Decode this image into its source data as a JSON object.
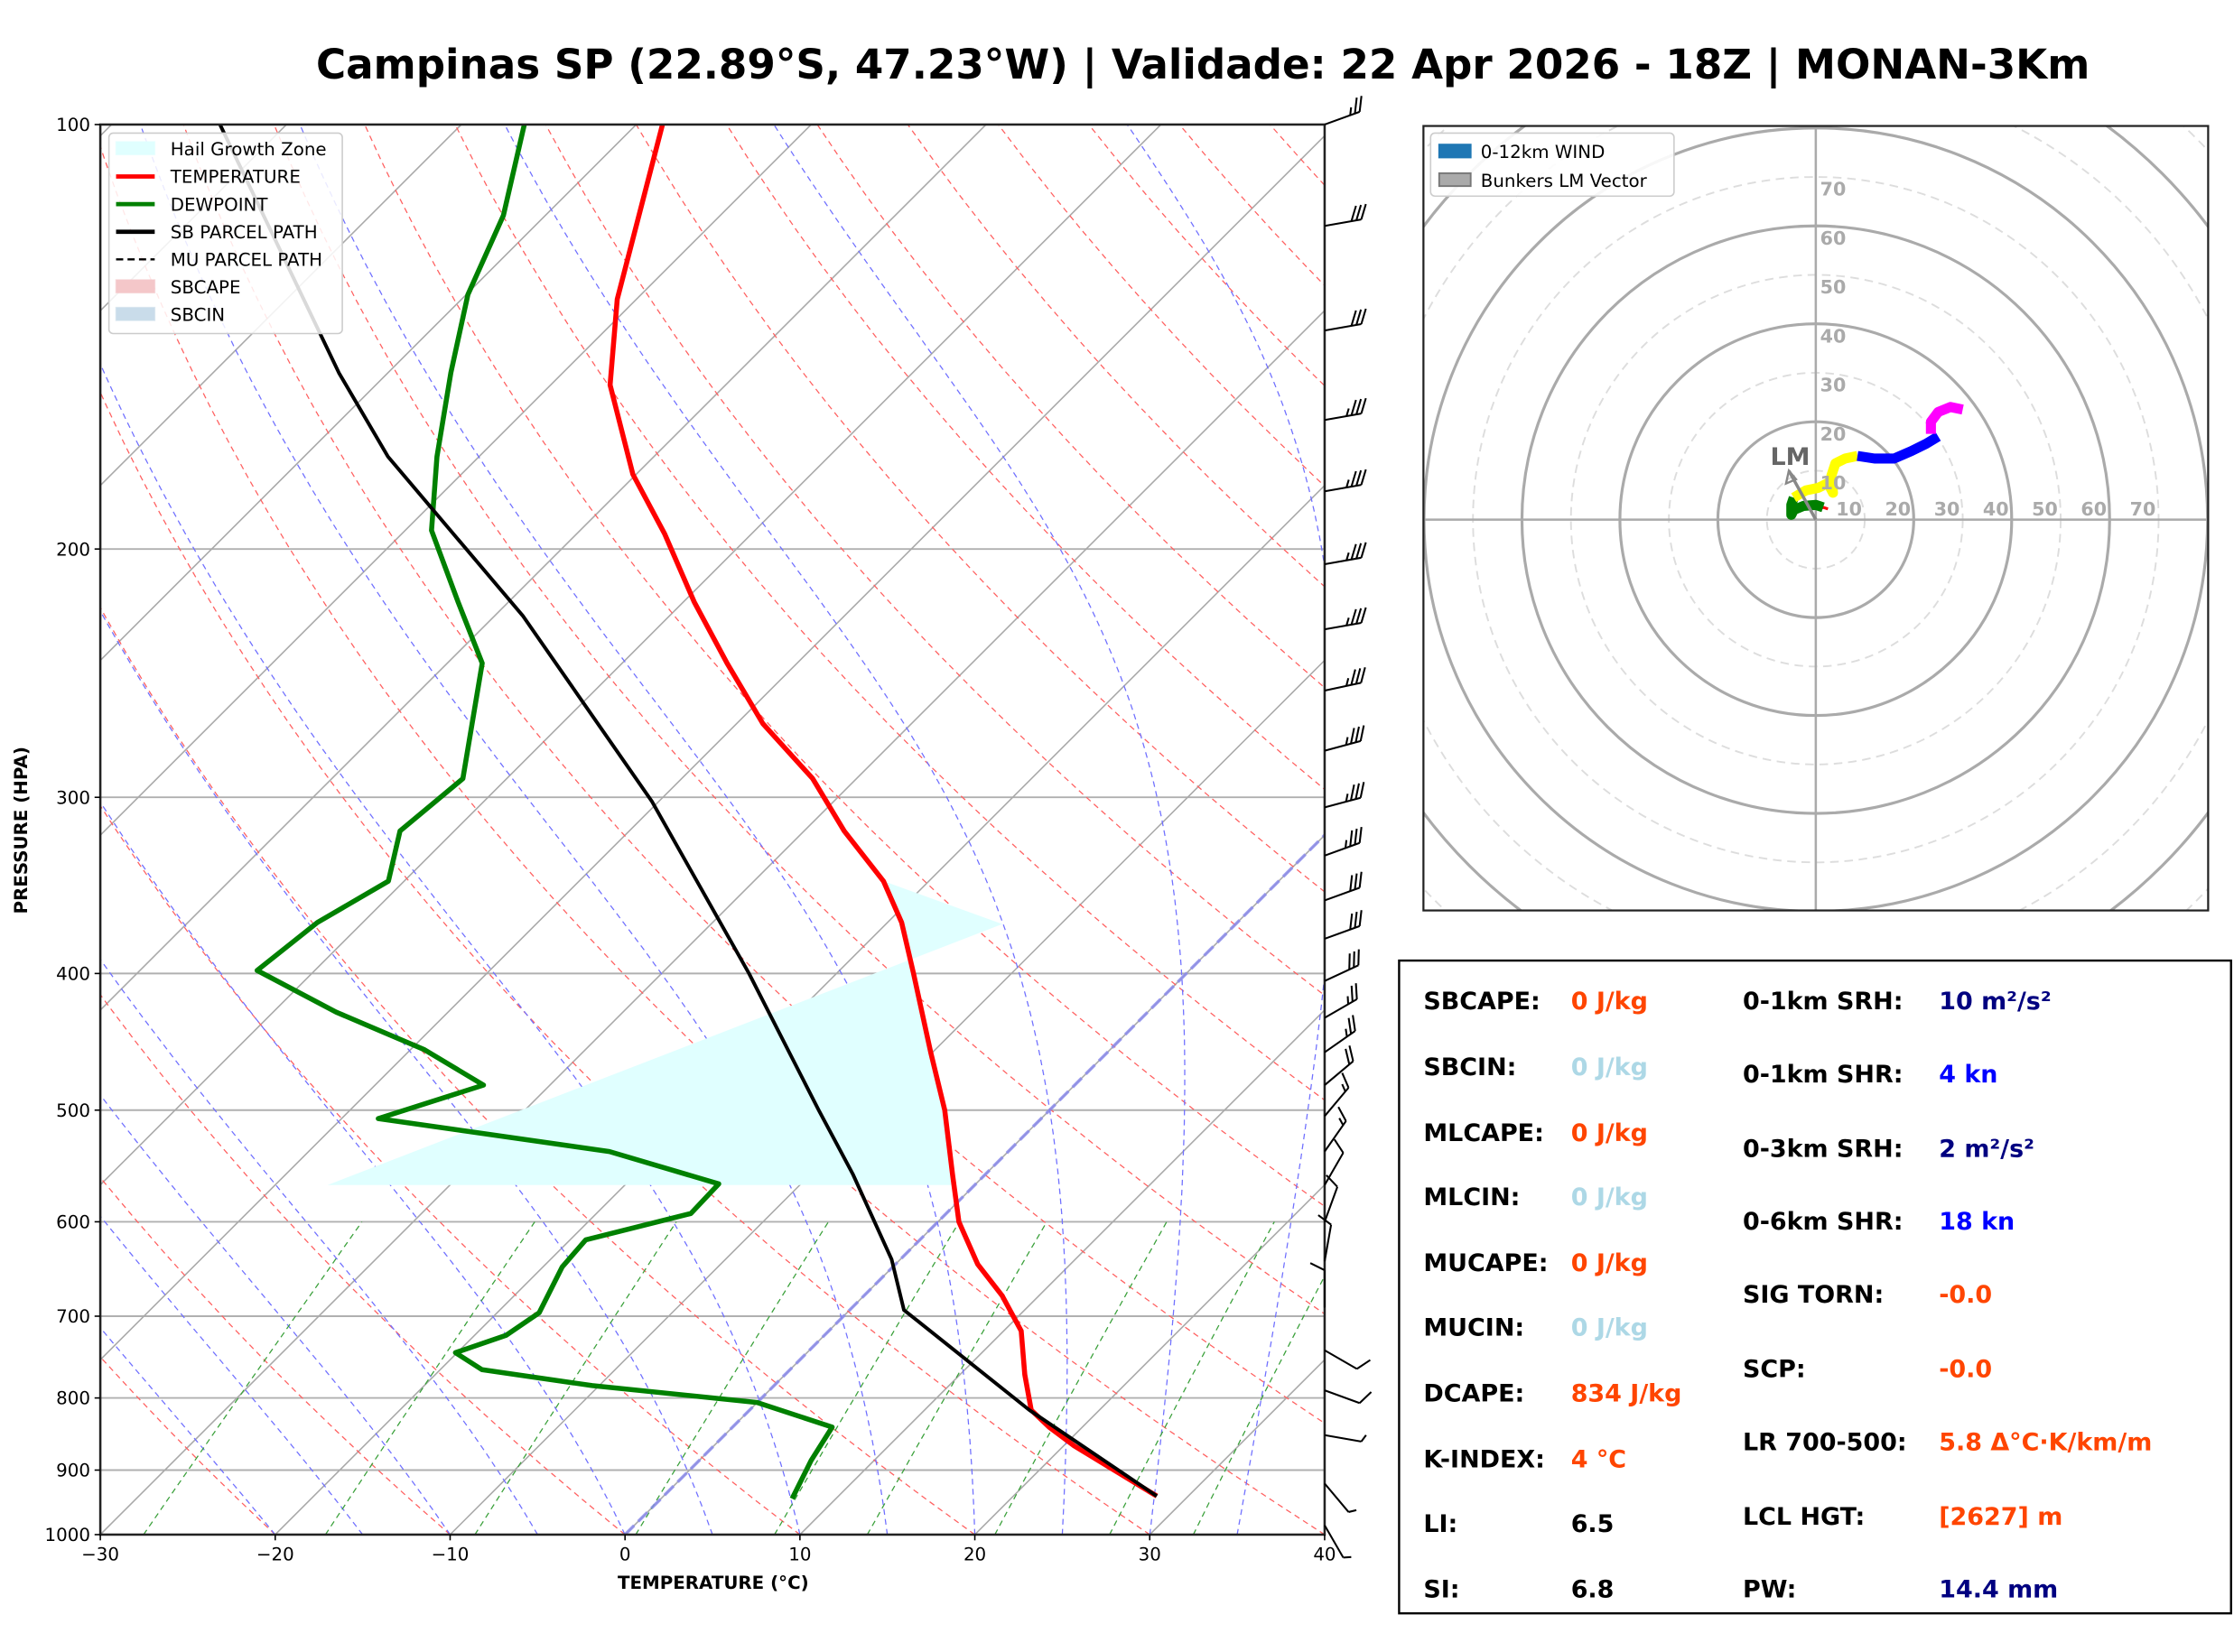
{
  "title": "Campinas SP (22.89°S, 47.23°W) | Validade: 22 Apr 2026 - 18Z | MONAN-3Km",
  "chart_data": [
    {
      "type": "line",
      "name": "skewt",
      "xlabel": "TEMPERATURE (°C)",
      "ylabel": "PRESSURE (HPA)",
      "xlim": [
        -30,
        40
      ],
      "ylim": [
        1000,
        100
      ],
      "yscale": "log",
      "skew_deg": 45,
      "xticks": [
        -30,
        -20,
        -10,
        0,
        10,
        20,
        30,
        40
      ],
      "xtick_labels": [
        "−30",
        "−20",
        "−10",
        "0",
        "10",
        "20",
        "30",
        "40"
      ],
      "yticks": [
        100,
        200,
        300,
        400,
        500,
        600,
        700,
        800,
        900,
        1000
      ],
      "ytick_labels": [
        "100",
        "200",
        "300",
        "400",
        "500",
        "600",
        "700",
        "800",
        "900",
        "1000"
      ],
      "legend": {
        "position": "top-left",
        "entries": [
          {
            "label": "Hail Growth Zone",
            "kind": "patch",
            "color": "#e0ffff"
          },
          {
            "label": "TEMPERATURE",
            "kind": "line",
            "color": "#ff0000"
          },
          {
            "label": "DEWPOINT",
            "kind": "line",
            "color": "#008000"
          },
          {
            "label": "SB PARCEL PATH",
            "kind": "line",
            "color": "#000000"
          },
          {
            "label": "MU PARCEL PATH",
            "kind": "dashed",
            "color": "#000000"
          },
          {
            "label": "SBCAPE",
            "kind": "patch",
            "color": "#f4c7c9"
          },
          {
            "label": "SBCIN",
            "kind": "patch",
            "color": "#c9dcea"
          }
        ]
      },
      "series": [
        {
          "name": "TEMPERATURE",
          "color": "#ff0000",
          "p": [
            939,
            865,
            839,
            816,
            770,
            717,
            677,
            643,
            600,
            555,
            500,
            455,
            400,
            368,
            344,
            317,
            291,
            266,
            241,
            218,
            195,
            177,
            153,
            133,
            100
          ],
          "t": [
            28.2,
            20.6,
            18.1,
            16.1,
            13.7,
            11.0,
            7.9,
            4.7,
            1.2,
            -1.9,
            -6.0,
            -10.1,
            -15.6,
            -19.2,
            -22.6,
            -27.7,
            -32.5,
            -38.5,
            -44.0,
            -49.4,
            -55.0,
            -60.2,
            -66.6,
            -71.1,
            -78.5
          ]
        },
        {
          "name": "DEWPOINT",
          "color": "#008000",
          "p": [
            943,
            886,
            839,
            806,
            784,
            764,
            743,
            722,
            696,
            646,
            618,
            592,
            564,
            535,
            507,
            480,
            453,
            426,
            398,
            368,
            344,
            317,
            291,
            241,
            218,
            194,
            172,
            150,
            132,
            116,
            100
          ],
          "t": [
            7.5,
            6.4,
            5.7,
            0.0,
            -10.4,
            -17.6,
            -20.1,
            -18.2,
            -17.6,
            -18.9,
            -19.1,
            -14.6,
            -14.7,
            -22.8,
            -37.9,
            -33.8,
            -39.2,
            -46.4,
            -53.3,
            -52.6,
            -50.9,
            -53.1,
            -52.5,
            -58.0,
            -62.9,
            -68.5,
            -72.4,
            -76.4,
            -79.9,
            -82.4,
            -86.4
          ]
        },
        {
          "name": "SB PARCEL PATH",
          "color": "#000000",
          "p": [
            939,
            816,
            693,
            638,
            555,
            500,
            400,
            302,
            223,
            172,
            150,
            100
          ],
          "t": [
            28.2,
            16.0,
            3.1,
            -0.5,
            -7.6,
            -13.2,
            -25.0,
            -40.4,
            -58.4,
            -75.2,
            -82.8,
            -103.8
          ]
        }
      ],
      "hail_growth_zone": {
        "p_top": 344,
        "p_bottom": 565,
        "t_left_top": -15.8,
        "t_left_bottom": -37.0
      },
      "freezing_line_t": 0,
      "wind_barbs": {
        "p": [
          100,
          118,
          140,
          162,
          182,
          205,
          228,
          252,
          278,
          305,
          330,
          355,
          378,
          405,
          430,
          455,
          480,
          505,
          535,
          565,
          600,
          640,
          690,
          740,
          790,
          850,
          920,
          985
        ],
        "speed_kn": [
          25,
          30,
          30,
          35,
          35,
          35,
          35,
          35,
          35,
          35,
          35,
          30,
          30,
          30,
          25,
          25,
          20,
          15,
          15,
          10,
          10,
          10,
          10,
          10,
          10,
          5,
          5,
          5
        ],
        "dir_deg": [
          250,
          260,
          260,
          260,
          260,
          260,
          260,
          258,
          255,
          255,
          250,
          250,
          250,
          245,
          240,
          235,
          230,
          220,
          215,
          210,
          200,
          190,
          180,
          300,
          290,
          280,
          320,
          330
        ]
      }
    },
    {
      "type": "line",
      "name": "hodograph",
      "units": "kn",
      "rings": [
        10,
        20,
        30,
        40,
        50,
        60,
        70
      ],
      "ring_labels": [
        "10",
        "20",
        "30",
        "40",
        "50",
        "60",
        "70"
      ],
      "legend": {
        "position": "top-left",
        "entries": [
          {
            "label": "0-12km WIND",
            "color": "#1f77b4"
          },
          {
            "label": "Bunkers LM Vector",
            "color": "#aaaaaa"
          }
        ]
      },
      "segments": [
        {
          "layer": "0-0.5km",
          "color": "#ff0000",
          "u": [
            0.5,
            1.5,
            2.5
          ],
          "v": [
            2.0,
            2.5,
            2.2
          ]
        },
        {
          "layer": "0.5-3km",
          "color": "#008000",
          "u": [
            1.5,
            0.0,
            -2.5,
            -4.5,
            -5.0,
            -5.0,
            -4.5
          ],
          "v": [
            2.5,
            3.0,
            2.8,
            2.0,
            1.0,
            3.0,
            4.5
          ]
        },
        {
          "layer": "3-6km",
          "color": "#ffff00",
          "u": [
            -4.5,
            -2.0,
            0.5,
            2.5,
            3.5,
            3.2,
            4.0,
            6.0,
            8.5
          ],
          "v": [
            4.5,
            6.0,
            6.5,
            7.5,
            5.5,
            9.0,
            11.5,
            12.5,
            13.0
          ]
        },
        {
          "layer": "6-9km",
          "color": "#0000ff",
          "u": [
            8.5,
            12.0,
            16.0,
            19.5,
            22.5,
            25.0
          ],
          "v": [
            13.0,
            12.5,
            12.5,
            14.0,
            15.5,
            17.0
          ]
        },
        {
          "layer": "9-12km",
          "color": "#ff00ff",
          "u": [
            23.5,
            23.5,
            25.0,
            27.5,
            30.0
          ],
          "v": [
            17.5,
            20.0,
            22.0,
            23.0,
            22.5
          ]
        }
      ],
      "bunkers_lm": {
        "u": -5.5,
        "v": 10.0,
        "label": "LM"
      }
    }
  ],
  "stats": {
    "left": [
      {
        "label": "SBCAPE:",
        "value": "0 J/kg",
        "color": "#ff4500"
      },
      {
        "label": "SBCIN:",
        "value": "0 J/kg",
        "color": "#add8e6"
      },
      {
        "label": "MLCAPE:",
        "value": "0 J/kg",
        "color": "#ff4500"
      },
      {
        "label": "MLCIN:",
        "value": "0 J/kg",
        "color": "#add8e6"
      },
      {
        "label": "MUCAPE:",
        "value": "0 J/kg",
        "color": "#ff4500"
      },
      {
        "label": "MUCIN:",
        "value": "0 J/kg",
        "color": "#add8e6"
      },
      {
        "label": "DCAPE:",
        "value": "834 J/kg",
        "color": "#ff4500"
      },
      {
        "label": "K-INDEX:",
        "value": "4 °C",
        "color": "#ff4500"
      },
      {
        "label": "LI:",
        "value": "6.5",
        "color": "#000000"
      },
      {
        "label": "SI:",
        "value": "6.8",
        "color": "#000000"
      }
    ],
    "right": [
      {
        "label": "0-1km SRH:",
        "value": "10 m²/s²",
        "color": "#000080"
      },
      {
        "label": "0-1km SHR:",
        "value": "4 kn",
        "color": "#0000ff"
      },
      {
        "label": "0-3km SRH:",
        "value": "2 m²/s²",
        "color": "#000080"
      },
      {
        "label": "0-6km SHR:",
        "value": "18 kn",
        "color": "#0000ff"
      },
      {
        "label": "SIG TORN:",
        "value": "-0.0",
        "color": "#ff4500"
      },
      {
        "label": "SCP:",
        "value": "-0.0",
        "color": "#ff4500"
      },
      {
        "label": "LR 700-500:",
        "value": "5.8 Δ°C·K/km/m",
        "color": "#ff4500"
      },
      {
        "label": "LCL HGT:",
        "value": "[2627] m",
        "color": "#ff4500"
      },
      {
        "label": "PW:",
        "value": "14.4 mm",
        "color": "#000080"
      }
    ]
  }
}
